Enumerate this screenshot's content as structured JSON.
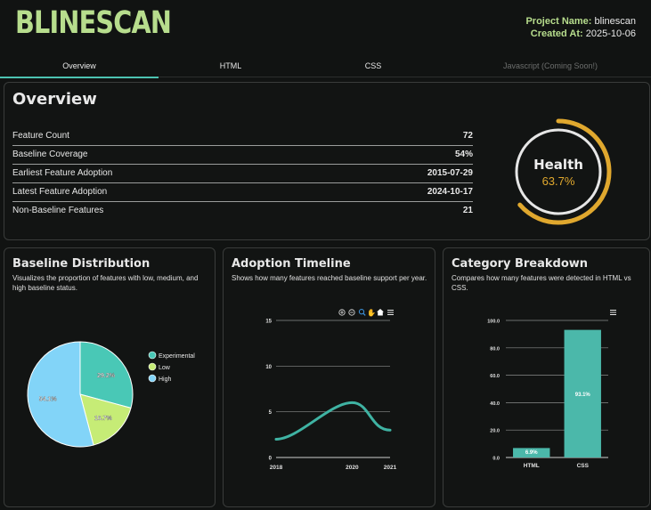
{
  "brand": "BLINESCAN",
  "meta": {
    "project_label": "Project Name:",
    "project_value": "blinescan",
    "created_label": "Created At:",
    "created_value": "2025-10-06"
  },
  "tabs": [
    {
      "label": "Overview",
      "active": true
    },
    {
      "label": "HTML",
      "active": false
    },
    {
      "label": "CSS",
      "active": false
    },
    {
      "label": "Javascript (Coming Soon!)",
      "active": false,
      "disabled": true
    }
  ],
  "overview": {
    "title": "Overview",
    "rows": [
      {
        "label": "Feature Count",
        "value": "72"
      },
      {
        "label": "Baseline Coverage",
        "value": "54%"
      },
      {
        "label": "Earliest Feature Adoption",
        "value": "2015-07-29"
      },
      {
        "label": "Latest Feature Adoption",
        "value": "2024-10-17"
      },
      {
        "label": "Non-Baseline Features",
        "value": "21"
      }
    ],
    "health": {
      "label": "Health",
      "value": "63.7%",
      "fraction": 0.637,
      "color": "#e0a82e"
    }
  },
  "colors": {
    "accent": "#4cc3b1",
    "brand": "#b7dd8d",
    "teal_bar": "#4bb8aa"
  },
  "chart_data": [
    {
      "type": "pie",
      "title": "Baseline Distribution",
      "description": "Visualizes the proportion of features with low, medium, and high baseline status.",
      "categories": [
        "Experimental",
        "Low",
        "High"
      ],
      "values": [
        29.2,
        16.7,
        54.1
      ],
      "labels": [
        "29.2%",
        "16.7%",
        "54.1%"
      ],
      "colors": [
        "#49c8b6",
        "#c6ec76",
        "#82d4f8"
      ],
      "legend": "right"
    },
    {
      "type": "line",
      "title": "Adoption Timeline",
      "description": "Shows how many features reached baseline support per year.",
      "x": [
        2018,
        2020,
        2021
      ],
      "xticks": [
        "2018",
        "2020",
        "2021"
      ],
      "y": [
        2,
        6,
        3
      ],
      "yticks": [
        "0",
        "5",
        "10",
        "15"
      ],
      "ylim": [
        0,
        15
      ],
      "color": "#3fb3a3",
      "grid": true,
      "toolbar_icons": [
        "zoom-in-icon",
        "zoom-out-icon",
        "magnifier-icon",
        "pan-hand-icon",
        "home-icon",
        "menu-icon"
      ]
    },
    {
      "type": "bar",
      "title": "Category Breakdown",
      "description": "Compares how many features were detected in HTML vs CSS.",
      "categories": [
        "HTML",
        "CSS"
      ],
      "values": [
        6.9,
        93.1
      ],
      "labels": [
        "6.9%",
        "93.1%"
      ],
      "yticks": [
        "0.0",
        "20.0",
        "40.0",
        "60.0",
        "80.0",
        "100.0"
      ],
      "ylim": [
        0,
        100
      ],
      "color": "#4bb8aa",
      "grid": true,
      "toolbar_icons": [
        "menu-icon"
      ]
    }
  ]
}
